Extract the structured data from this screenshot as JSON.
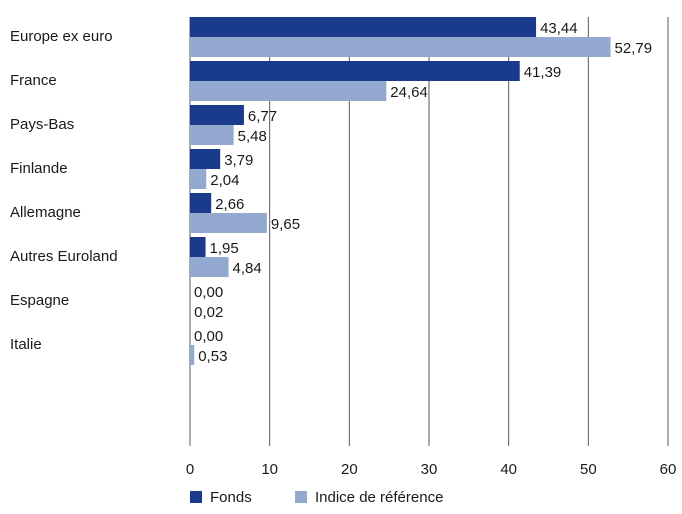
{
  "chart_data": {
    "type": "bar",
    "orientation": "horizontal",
    "categories": [
      "Europe ex euro",
      "France",
      "Pays-Bas",
      "Finlande",
      "Allemagne",
      "Autres Euroland",
      "Espagne",
      "Italie"
    ],
    "series": [
      {
        "name": "Fonds",
        "values": [
          43.44,
          41.39,
          6.77,
          3.79,
          2.66,
          1.95,
          0.0,
          0.0
        ],
        "labels": [
          "43,44",
          "41,39",
          "6,77",
          "3,79",
          "2,66",
          "1,95",
          "0,00",
          "0,00"
        ]
      },
      {
        "name": "Indice de référence",
        "values": [
          52.79,
          24.64,
          5.48,
          2.04,
          9.65,
          4.84,
          0.02,
          0.53
        ],
        "labels": [
          "52,79",
          "24,64",
          "5,48",
          "2,04",
          "9,65",
          "4,84",
          "0,02",
          "0,53"
        ]
      }
    ],
    "x_ticks": [
      "0",
      "10",
      "20",
      "30",
      "40",
      "50",
      "60"
    ],
    "xlim": [
      0,
      60
    ],
    "grid": "vertical",
    "legend_position": "bottom",
    "colors": {
      "Fonds": "#1a3a8c",
      "Indice de référence": "#94a9cf",
      "grid": "#5a5a5a"
    },
    "title": "",
    "xlabel": "",
    "ylabel": ""
  }
}
